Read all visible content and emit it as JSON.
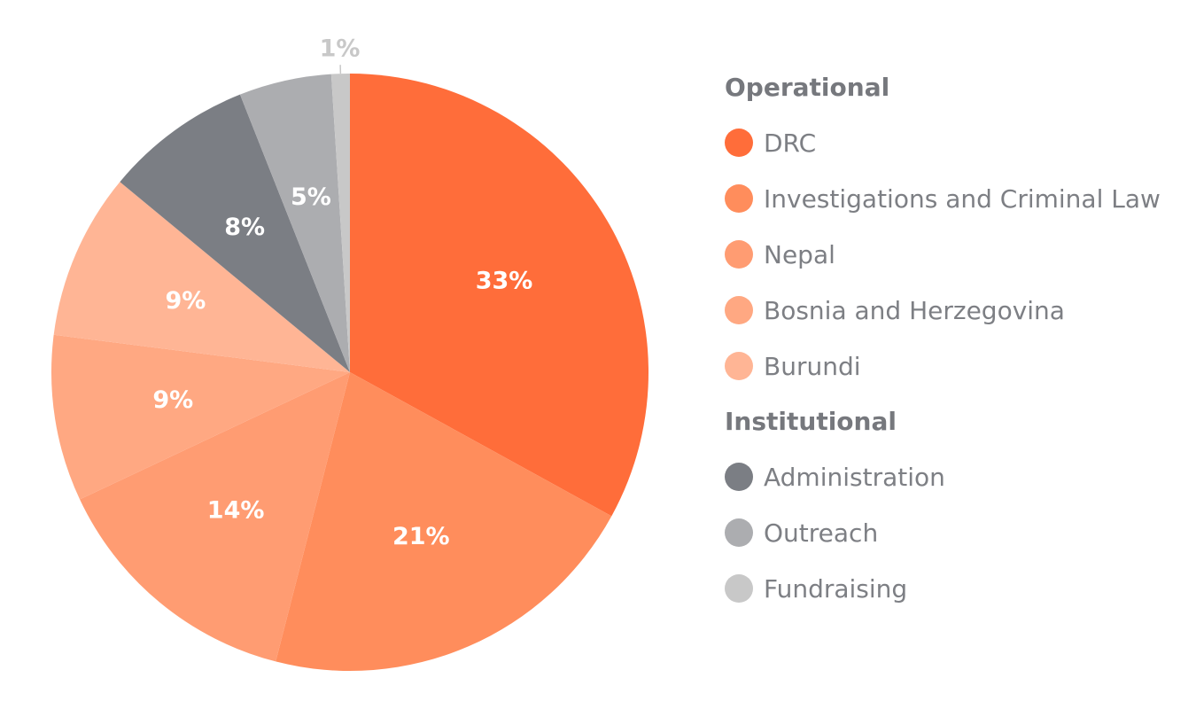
{
  "chart_data": {
    "type": "pie",
    "title": "",
    "slices": [
      {
        "label": "DRC",
        "value": 33,
        "value_label": "33%",
        "color": "#ff6d3a",
        "group": "Operational"
      },
      {
        "label": "Investigations and Criminal Law",
        "value": 21,
        "value_label": "21%",
        "color": "#ff8d5c",
        "group": "Operational"
      },
      {
        "label": "Nepal",
        "value": 14,
        "value_label": "14%",
        "color": "#ff9c72",
        "group": "Operational"
      },
      {
        "label": "Bosnia and Herzegovina",
        "value": 9,
        "value_label": "9%",
        "color": "#ffa882",
        "group": "Operational"
      },
      {
        "label": "Burundi",
        "value": 9,
        "value_label": "9%",
        "color": "#ffb595",
        "group": "Operational"
      },
      {
        "label": "Administration",
        "value": 8,
        "value_label": "8%",
        "color": "#7b7e84",
        "group": "Institutional"
      },
      {
        "label": "Outreach",
        "value": 5,
        "value_label": "5%",
        "color": "#acadb0",
        "group": "Institutional"
      },
      {
        "label": "Fundraising",
        "value": 1,
        "value_label": "1%",
        "color": "#c8c8c8",
        "group": "Institutional"
      }
    ],
    "legend": {
      "placement": "right",
      "groups": [
        {
          "title": "Operational",
          "items": [
            "DRC",
            "Investigations and Criminal Law",
            "Nepal",
            "Bosnia and Herzegovina",
            "Burundi"
          ]
        },
        {
          "title": "Institutional",
          "items": [
            "Administration",
            "Outreach",
            "Fundraising"
          ]
        }
      ]
    }
  }
}
